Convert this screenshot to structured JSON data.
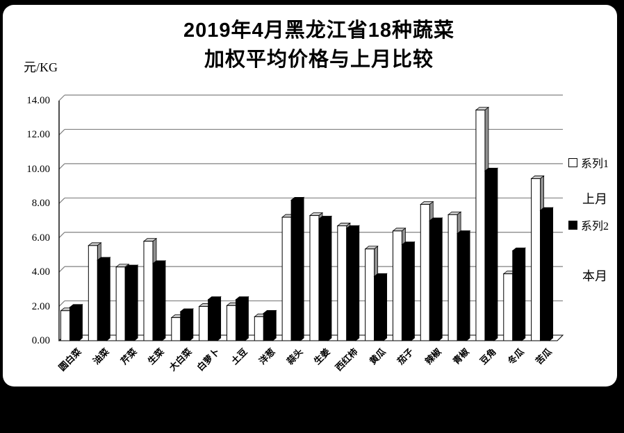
{
  "chart_data": {
    "type": "bar",
    "style": "3d-column",
    "title_lines": [
      "2019年4月黑龙江省18种蔬菜",
      "加权平均价格与上月比较"
    ],
    "unit_label": "元/KG",
    "categories": [
      "圆白菜",
      "油菜",
      "芹菜",
      "生菜",
      "大白菜",
      "白萝卜",
      "土豆",
      "洋葱",
      "蒜头",
      "生姜",
      "西红柿",
      "黄瓜",
      "茄子",
      "辣椒",
      "青椒",
      "豆角",
      "冬瓜",
      "苦瓜"
    ],
    "series": [
      {
        "name": "系列1",
        "annotation": "上月",
        "fill": "#ffffff",
        "values": [
          1.75,
          5.55,
          4.3,
          5.8,
          1.35,
          2.0,
          2.05,
          1.4,
          7.2,
          7.3,
          6.7,
          5.35,
          6.4,
          7.95,
          7.35,
          13.45,
          3.9,
          9.45
        ]
      },
      {
        "name": "系列2",
        "annotation": "本月",
        "fill": "#000000",
        "values": [
          1.95,
          4.7,
          4.25,
          4.5,
          1.7,
          2.4,
          2.4,
          1.6,
          8.2,
          7.1,
          6.55,
          3.75,
          5.6,
          7.0,
          6.25,
          9.9,
          5.25,
          7.6
        ]
      }
    ],
    "xlabel": "",
    "ylabel": "元/KG",
    "ylim": [
      0,
      14
    ],
    "ytick_step": 2,
    "ytick_labels": [
      "0.00",
      "2.00",
      "4.00",
      "6.00",
      "8.00",
      "10.00",
      "12.00",
      "14.00"
    ],
    "grid": true,
    "legend_position": "right",
    "colors": {
      "grid_line": "#808080",
      "axis_line": "#000000",
      "bar_outline": "#000000",
      "bar_top_face": "#c8c8c8",
      "bar_side_face": "#909090",
      "frame_background": "#000000",
      "surface_background": "#ffffff"
    }
  }
}
